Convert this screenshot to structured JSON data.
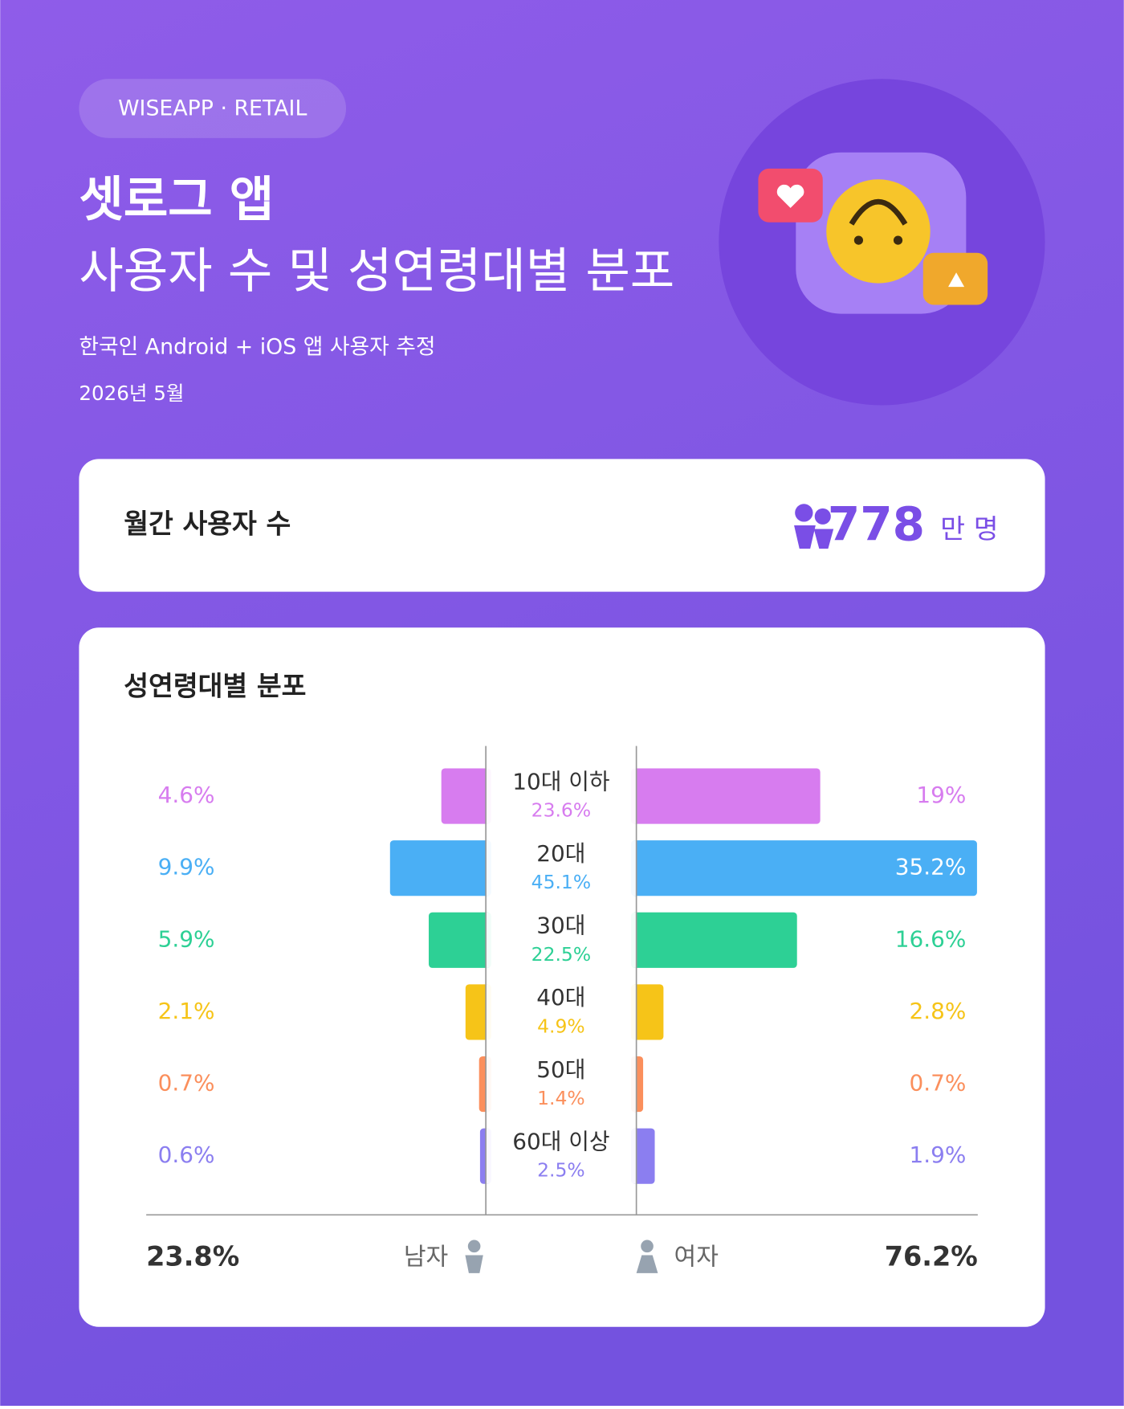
{
  "badge": "WISEAPP · RETAIL",
  "title_line1": "셋로그 앱",
  "title_line2": "사용자 수 및 성연령대별 분포",
  "subtitle": "한국인 Android + iOS 앱 사용자 추정",
  "date": "2026년 5월",
  "mau": {
    "label": "월간 사용자 수",
    "value": 778,
    "unit": "만 명"
  },
  "chart_data": {
    "type": "butterfly",
    "title": "성연령대별 분포",
    "categories": [
      "10대 이하",
      "20대",
      "30대",
      "40대",
      "50대",
      "60대 이상"
    ],
    "category_colors": [
      "#d77cef",
      "#4aaff5",
      "#2dd095",
      "#f6c418",
      "#fb8f5c",
      "#8b7ef0"
    ],
    "category_totals": [
      23.6,
      45.1,
      22.5,
      4.9,
      1.4,
      2.5
    ],
    "category_total_labels": [
      "23.6%",
      "45.1%",
      "22.5%",
      "4.9%",
      "1.4%",
      "2.5%"
    ],
    "series": [
      {
        "name": "남자",
        "values": [
          4.6,
          9.9,
          5.9,
          2.1,
          0.7,
          0.6
        ],
        "value_labels": [
          "4.6%",
          "9.9%",
          "5.9%",
          "2.1%",
          "0.7%",
          "0.6%"
        ],
        "total": 23.8,
        "total_label": "23.8%"
      },
      {
        "name": "여자",
        "values": [
          19,
          35.2,
          16.6,
          2.8,
          0.7,
          1.9
        ],
        "value_labels": [
          "19%",
          "35.2%",
          "16.6%",
          "2.8%",
          "0.7%",
          "1.9%"
        ],
        "total": 76.2,
        "total_label": "76.2%"
      }
    ]
  }
}
